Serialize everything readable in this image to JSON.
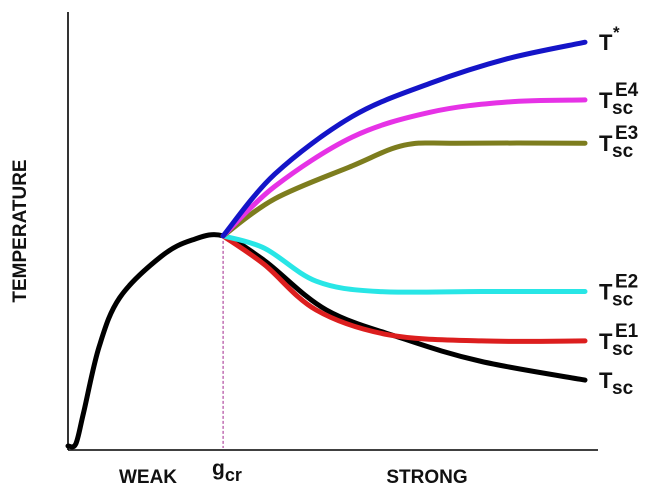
{
  "chart_data": {
    "type": "line",
    "title": "",
    "ylabel": "TEMPERATURE",
    "x_annotations": {
      "weak": "WEAK",
      "critical": "g",
      "critical_sub": "cr",
      "strong": "STRONG"
    },
    "xlim": [
      0,
      100
    ],
    "ylim": [
      0,
      100
    ],
    "grid": false,
    "legend": "none",
    "critical_x": 30,
    "series": [
      {
        "label_base": "T",
        "label_sub": "",
        "label_sup": "*",
        "color": "#1414c8",
        "points": [
          [
            30,
            51
          ],
          [
            40,
            66
          ],
          [
            55,
            80
          ],
          [
            70,
            88
          ],
          [
            85,
            94
          ],
          [
            100,
            98
          ]
        ]
      },
      {
        "label_base": "T",
        "label_sub": "sc",
        "label_sup": "E4",
        "color": "#e632e6",
        "points": [
          [
            30,
            51
          ],
          [
            40,
            63
          ],
          [
            55,
            75
          ],
          [
            70,
            81
          ],
          [
            85,
            83.5
          ],
          [
            100,
            84
          ]
        ]
      },
      {
        "label_base": "T",
        "label_sub": "sc",
        "label_sup": "E3",
        "color": "#7d7d1e",
        "points": [
          [
            30,
            51
          ],
          [
            40,
            60
          ],
          [
            55,
            68
          ],
          [
            65,
            73
          ],
          [
            75,
            73.5
          ],
          [
            100,
            73.5
          ]
        ]
      },
      {
        "label_base": "T",
        "label_sub": "sc",
        "label_sup": "E2",
        "color": "#28e6e6",
        "points": [
          [
            30,
            51
          ],
          [
            38,
            48
          ],
          [
            48,
            40
          ],
          [
            60,
            37.5
          ],
          [
            80,
            37.5
          ],
          [
            100,
            37.5
          ]
        ]
      },
      {
        "label_base": "T",
        "label_sub": "sc",
        "label_sup": "E1",
        "color": "#dc1e1e",
        "points": [
          [
            30,
            51
          ],
          [
            38,
            44
          ],
          [
            48,
            33
          ],
          [
            62,
            27
          ],
          [
            80,
            25.5
          ],
          [
            100,
            25.5
          ]
        ]
      },
      {
        "label_base": "T",
        "label_sub": "sc",
        "label_sup": "",
        "color": "#000000",
        "points": [
          [
            0,
            0
          ],
          [
            1.5,
            0.5
          ],
          [
            3,
            8
          ],
          [
            6,
            24
          ],
          [
            10,
            36
          ],
          [
            18,
            46
          ],
          [
            24,
            50
          ],
          [
            30,
            51
          ],
          [
            38,
            45
          ],
          [
            50,
            33
          ],
          [
            65,
            26
          ],
          [
            80,
            20.5
          ],
          [
            100,
            16
          ]
        ]
      }
    ]
  }
}
